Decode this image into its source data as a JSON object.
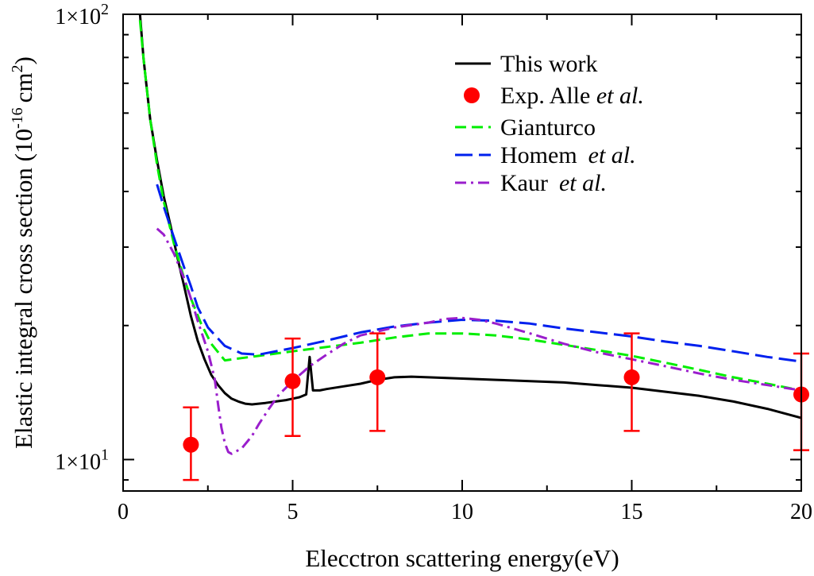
{
  "chart_data": {
    "type": "line",
    "title": "",
    "xlabel": "Elecctron scattering energy(eV)",
    "ylabel": "Elastic integral cross section (10",
    "ylabel_exp": "-16",
    "ylabel_unit": "cm",
    "ylabel_unit_exp": "2",
    "ylabel_close": ")",
    "xlim": [
      0,
      20
    ],
    "ylim": [
      8.5,
      100
    ],
    "yscale": "log",
    "grid": false,
    "legend_position": "top-right",
    "x_ticks": [
      {
        "value": 0,
        "label": "0"
      },
      {
        "value": 5,
        "label": "5"
      },
      {
        "value": 10,
        "label": "10"
      },
      {
        "value": 15,
        "label": "15"
      },
      {
        "value": 20,
        "label": "20"
      }
    ],
    "y_ticks": [
      {
        "value": 10,
        "label": "1×10",
        "exp": "1"
      },
      {
        "value": 100,
        "label": "1×10",
        "exp": "2"
      }
    ],
    "series": [
      {
        "name": "This work",
        "style": "solid",
        "color": "#000000",
        "x": [
          0.5,
          0.6,
          0.7,
          0.8,
          1.0,
          1.2,
          1.4,
          1.6,
          1.8,
          2.0,
          2.2,
          2.4,
          2.6,
          2.8,
          3.0,
          3.2,
          3.4,
          3.6,
          3.8,
          4.0,
          4.2,
          4.5,
          4.8,
          5.0,
          5.2,
          5.4,
          5.5,
          5.6,
          5.8,
          6.0,
          6.5,
          7.0,
          7.5,
          8.0,
          8.5,
          9.0,
          10.0,
          11.0,
          12.0,
          13.0,
          14.0,
          15.0,
          16.0,
          17.0,
          18.0,
          19.0,
          20.0
        ],
        "y": [
          100,
          80,
          68,
          58,
          47,
          39,
          33.5,
          28.5,
          24.5,
          21.0,
          18.5,
          16.8,
          15.5,
          14.7,
          14.1,
          13.7,
          13.5,
          13.35,
          13.3,
          13.35,
          13.4,
          13.5,
          13.6,
          13.7,
          13.8,
          14.0,
          17.0,
          14.3,
          14.3,
          14.4,
          14.6,
          14.8,
          15.1,
          15.3,
          15.35,
          15.3,
          15.2,
          15.1,
          15.0,
          14.9,
          14.7,
          14.5,
          14.2,
          13.9,
          13.5,
          13.0,
          12.4
        ]
      },
      {
        "name": "Gianturco",
        "style": "dashed",
        "color": "#00ee00",
        "x": [
          0.5,
          0.6,
          0.8,
          1.0,
          1.2,
          1.5,
          1.8,
          2.0,
          2.3,
          2.6,
          3.0,
          3.5,
          4.0,
          5.0,
          6.0,
          7.0,
          8.0,
          9.0,
          10.0,
          11.0,
          12.0,
          13.0,
          14.0,
          15.0,
          16.0,
          17.0,
          18.0,
          19.0,
          20.0
        ],
        "y": [
          97,
          80,
          58,
          46,
          38,
          30.5,
          25.5,
          23.0,
          20.2,
          18.2,
          16.7,
          16.9,
          17.1,
          17.5,
          17.9,
          18.3,
          18.8,
          19.2,
          19.2,
          19.0,
          18.6,
          18.1,
          17.6,
          17.1,
          16.5,
          15.9,
          15.3,
          14.8,
          14.3
        ]
      },
      {
        "name": "Homem  et al.",
        "name_plain": "Homem",
        "name_italic": "et al.",
        "style": "long-dashed",
        "color": "#0020ee",
        "x": [
          1.0,
          1.2,
          1.5,
          1.8,
          2.0,
          2.2,
          2.5,
          3.0,
          3.5,
          4.0,
          4.5,
          5.0,
          6.0,
          7.0,
          8.0,
          9.0,
          10.0,
          11.0,
          12.0,
          13.0,
          14.0,
          15.0,
          16.0,
          17.0,
          18.0,
          19.0,
          20.0
        ],
        "y": [
          41.5,
          37,
          31.5,
          27,
          24.5,
          22,
          19.8,
          18.0,
          17.3,
          17.2,
          17.5,
          17.8,
          18.5,
          19.3,
          19.9,
          20.3,
          20.6,
          20.5,
          20.2,
          19.7,
          19.3,
          18.9,
          18.4,
          18.0,
          17.5,
          17.0,
          16.6
        ]
      },
      {
        "name": "Kaur  et al.",
        "name_plain": "Kaur",
        "name_italic": "et al.",
        "style": "dash-dot",
        "color": "#9a1ecc",
        "x": [
          1.0,
          1.2,
          1.5,
          1.8,
          2.0,
          2.2,
          2.5,
          2.7,
          2.8,
          2.9,
          3.0,
          3.1,
          3.2,
          3.3,
          3.5,
          3.8,
          4.0,
          4.3,
          4.6,
          5.0,
          5.5,
          6.0,
          6.5,
          7.0,
          8.0,
          9.0,
          9.5,
          10.0,
          10.5,
          11.0,
          12.0,
          13.0,
          14.0,
          15.0,
          16.0,
          17.0,
          18.0,
          19.0,
          20.0
        ],
        "y": [
          33,
          32,
          29,
          25.5,
          23,
          20.5,
          17.5,
          15.2,
          13.3,
          11.8,
          10.9,
          10.4,
          10.3,
          10.4,
          10.6,
          11.3,
          12.0,
          13.0,
          14.0,
          15.0,
          16.2,
          17.2,
          18.2,
          19.0,
          19.8,
          20.3,
          20.7,
          20.8,
          20.6,
          20.2,
          19.2,
          18.2,
          17.4,
          16.8,
          16.2,
          15.6,
          15.1,
          14.7,
          14.3
        ]
      },
      {
        "name": "Exp. Alle et al.",
        "name_plain": "Exp. Alle ",
        "name_italic": "et al.",
        "style": "markers",
        "color": "#ff0000",
        "x": [
          2.0,
          5.0,
          7.5,
          15.0,
          20.0
        ],
        "y": [
          10.8,
          15.0,
          15.3,
          15.3,
          14.0
        ],
        "err_low": [
          9.0,
          11.3,
          11.6,
          11.6,
          10.5
        ],
        "err_high": [
          13.1,
          18.7,
          19.2,
          19.2,
          17.3
        ]
      }
    ],
    "legend_order": [
      "This work",
      "Exp. Alle et al.",
      "Gianturco",
      "Homem  et al.",
      "Kaur  et al."
    ]
  }
}
